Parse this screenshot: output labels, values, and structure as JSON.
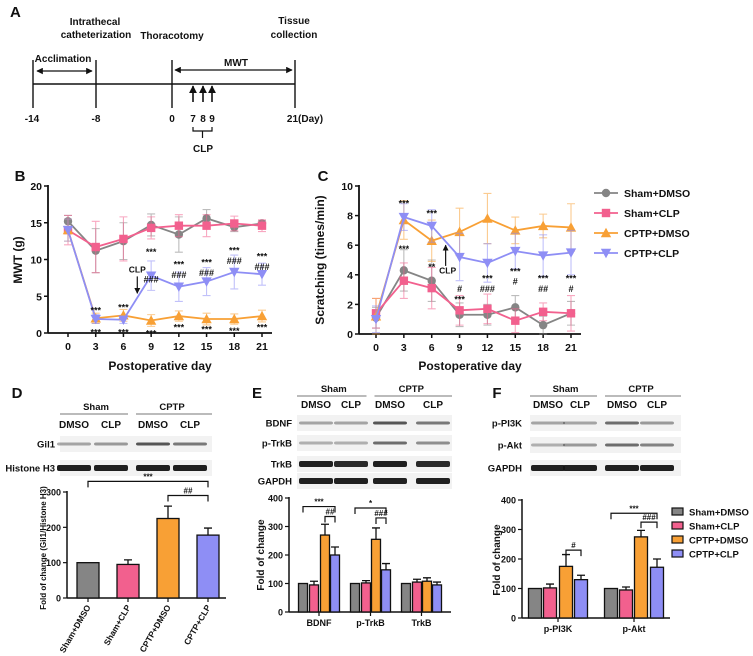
{
  "panel_labels": {
    "A": "A",
    "B": "B",
    "C": "C",
    "D": "D",
    "E": "E",
    "F": "F"
  },
  "timeline": {
    "events": {
      "intrathecal_1": "Intrathecal",
      "intrathecal_2": "catheterization",
      "thoracotomy": "Thoracotomy",
      "tissue_1": "Tissue",
      "tissue_2": "collection"
    },
    "acclimation": "Acclimation",
    "mwt": "MWT",
    "ticks": [
      "-14",
      "-8",
      "0",
      "7",
      "8",
      "9",
      "21(Day)"
    ],
    "clp": "CLP"
  },
  "colors": {
    "Sham+DMSO": "#858585",
    "Sham+CLP": "#f2608e",
    "CPTP+DMSO": "#f8a035",
    "CPTP+CLP": "#8e8ef5"
  },
  "legend": [
    "Sham+DMSO",
    "Sham+CLP",
    "CPTP+DMSO",
    "CPTP+CLP"
  ],
  "blots": {
    "D": {
      "groups": [
        "Sham",
        "CPTP"
      ],
      "lanes": [
        "DMSO",
        "CLP",
        "DMSO",
        "CLP"
      ],
      "rows": [
        "Gil1",
        "Histone H3"
      ],
      "intensity": [
        [
          0.35,
          0.4,
          0.7,
          0.55
        ],
        [
          0.95,
          0.95,
          0.95,
          0.95
        ]
      ]
    },
    "E": {
      "groups": [
        "Sham",
        "CPTP"
      ],
      "lanes": [
        "DMSO",
        "CLP",
        "DMSO",
        "CLP"
      ],
      "rows": [
        "BDNF",
        "p-TrkB",
        "TrkB",
        "GAPDH"
      ],
      "intensity": [
        [
          0.35,
          0.35,
          0.7,
          0.55
        ],
        [
          0.3,
          0.3,
          0.6,
          0.45
        ],
        [
          0.95,
          0.9,
          0.95,
          0.9
        ],
        [
          0.95,
          0.95,
          0.95,
          0.95
        ]
      ]
    },
    "F": {
      "groups": [
        "Sham",
        "CPTP"
      ],
      "lanes": [
        "DMSO",
        "CLP",
        "DMSO",
        "CLP"
      ],
      "rows": [
        "p-PI3K",
        "p-Akt",
        "GAPDH"
      ],
      "intensity": [
        [
          0.35,
          0.35,
          0.6,
          0.4
        ],
        [
          0.3,
          0.4,
          0.6,
          0.5
        ],
        [
          0.95,
          0.95,
          0.95,
          0.95
        ]
      ]
    }
  },
  "chart_data": [
    {
      "id": "B",
      "type": "line",
      "title": "",
      "xlabel": "Postoperative day",
      "ylabel": "MWT (g)",
      "x": [
        0,
        3,
        6,
        9,
        12,
        15,
        18,
        21
      ],
      "xticks": [
        "0",
        "3",
        "6",
        "9",
        "12",
        "15",
        "18",
        "21"
      ],
      "ylim": [
        0,
        20
      ],
      "yticks": [
        "0",
        "5",
        "10",
        "15",
        "20"
      ],
      "series": [
        {
          "name": "Sham+DMSO",
          "marker": "circle",
          "values": [
            15.2,
            11.2,
            12.5,
            14.7,
            13.4,
            15.6,
            14.4,
            14.9
          ],
          "errors": [
            0.8,
            3,
            2.5,
            1.5,
            2.4,
            1.2,
            0.6,
            0.4
          ]
        },
        {
          "name": "Sham+CLP",
          "marker": "square",
          "values": [
            14.0,
            11.7,
            12.8,
            14.3,
            14.6,
            14.6,
            14.9,
            14.6
          ],
          "errors": [
            2,
            3.5,
            3,
            1.5,
            1.5,
            1.5,
            1,
            0.8
          ]
        },
        {
          "name": "CPTP+DMSO",
          "marker": "triangle-up",
          "values": [
            14.0,
            2.0,
            2.4,
            1.7,
            2.3,
            1.9,
            1.9,
            2.3
          ],
          "errors": [
            1.5,
            0.7,
            0.8,
            0.8,
            0.7,
            0.8,
            0.7,
            0.8
          ]
        },
        {
          "name": "CPTP+CLP",
          "marker": "triangle-down",
          "values": [
            14.0,
            1.9,
            1.8,
            7.8,
            6.3,
            7.0,
            8.3,
            8.0
          ],
          "errors": [
            1.5,
            0.6,
            0.5,
            2,
            2,
            1.9,
            2.3,
            1.5
          ]
        }
      ],
      "annotations": [
        {
          "x": 3,
          "y": 3.2,
          "text": "***"
        },
        {
          "x": 3,
          "y": 0.2,
          "text": "***"
        },
        {
          "x": 6,
          "y": 3.6,
          "text": "***"
        },
        {
          "x": 6,
          "y": 0.2,
          "text": "***"
        },
        {
          "x": 9,
          "y": 10.6,
          "text": "***"
        },
        {
          "x": 9,
          "y": 9.7,
          "text": "###"
        },
        {
          "x": 9,
          "y": 0.1,
          "text": "***"
        },
        {
          "x": 12,
          "y": 8.9,
          "text": "***"
        },
        {
          "x": 12,
          "y": 8.0,
          "text": "###"
        },
        {
          "x": 12,
          "y": 0.9,
          "text": "***"
        },
        {
          "x": 15,
          "y": 9.2,
          "text": "***"
        },
        {
          "x": 15,
          "y": 8.3,
          "text": "###"
        },
        {
          "x": 15,
          "y": 0.6,
          "text": "***"
        },
        {
          "x": 18,
          "y": 10.8,
          "text": "***"
        },
        {
          "x": 18,
          "y": 9.9,
          "text": "###"
        },
        {
          "x": 18,
          "y": 0.4,
          "text": "***"
        },
        {
          "x": 21,
          "y": 10.0,
          "text": "***"
        },
        {
          "x": 21,
          "y": 9.1,
          "text": "###"
        },
        {
          "x": 21,
          "y": 0.9,
          "text": "***"
        }
      ],
      "clp_marker": {
        "x": 7.5,
        "text": "CLP",
        "direction": "down"
      }
    },
    {
      "id": "C",
      "type": "line",
      "title": "",
      "xlabel": "Postoperative day",
      "ylabel": "Scratching (times/min)",
      "x": [
        0,
        3,
        6,
        9,
        12,
        15,
        18,
        21
      ],
      "xticks": [
        "0",
        "3",
        "6",
        "9",
        "12",
        "15",
        "18",
        "21"
      ],
      "ylim": [
        0,
        10
      ],
      "yticks": [
        "0",
        "2",
        "4",
        "6",
        "8",
        "10"
      ],
      "legend_position": "top-right",
      "series": [
        {
          "name": "Sham+DMSO",
          "marker": "circle",
          "values": [
            1.1,
            4.3,
            3.6,
            1.3,
            1.3,
            1.8,
            0.6,
            1.4
          ],
          "errors": [
            0.7,
            1.4,
            1.4,
            0.8,
            0.7,
            0.8,
            0.6,
            0.8
          ]
        },
        {
          "name": "Sham+CLP",
          "marker": "square",
          "values": [
            1.4,
            3.6,
            3.1,
            1.6,
            1.7,
            0.9,
            1.5,
            1.4
          ],
          "errors": [
            1,
            1.2,
            1.4,
            1,
            1,
            0.8,
            0.6,
            1.2
          ]
        },
        {
          "name": "CPTP+DMSO",
          "marker": "triangle-up",
          "values": [
            1.2,
            7.7,
            6.3,
            6.9,
            7.8,
            7.0,
            7.3,
            7.2
          ],
          "errors": [
            1.2,
            1.3,
            1.4,
            1.6,
            1.7,
            0.9,
            0.8,
            1.6
          ]
        },
        {
          "name": "CPTP+CLP",
          "marker": "triangle-down",
          "values": [
            1.0,
            7.9,
            7.3,
            5.2,
            4.8,
            5.6,
            5.3,
            5.5
          ],
          "errors": [
            0.9,
            0.9,
            1.1,
            1.6,
            1.3,
            1.2,
            1.4,
            1.5
          ]
        }
      ],
      "annotations": [
        {
          "x": 3,
          "y": 8.9,
          "text": "***"
        },
        {
          "x": 3,
          "y": 5.8,
          "text": "***"
        },
        {
          "x": 6,
          "y": 8.2,
          "text": "***"
        },
        {
          "x": 6,
          "y": 4.6,
          "text": "**"
        },
        {
          "x": 9,
          "y": 3.6,
          "text": "***"
        },
        {
          "x": 9,
          "y": 3.1,
          "text": "#"
        },
        {
          "x": 12,
          "y": 3.6,
          "text": "***"
        },
        {
          "x": 12,
          "y": 3.1,
          "text": "###"
        },
        {
          "x": 15,
          "y": 4.1,
          "text": "***"
        },
        {
          "x": 15,
          "y": 3.6,
          "text": "#"
        },
        {
          "x": 18,
          "y": 3.6,
          "text": "***"
        },
        {
          "x": 18,
          "y": 3.1,
          "text": "##"
        },
        {
          "x": 21,
          "y": 3.6,
          "text": "***"
        },
        {
          "x": 21,
          "y": 3.1,
          "text": "#"
        }
      ],
      "clp_marker": {
        "x": 7.5,
        "text": "CLP",
        "direction": "up"
      }
    },
    {
      "id": "D",
      "type": "bar",
      "ylabel": "Fold of change (Gil1/Histone H3)",
      "categories": [
        "Sham+DMSO",
        "Sham+CLP",
        "CPTP+DMSO",
        "CPTP+CLP"
      ],
      "values": [
        100,
        95,
        225,
        178
      ],
      "errors": [
        0,
        13,
        35,
        20
      ],
      "ylim": [
        0,
        300
      ],
      "yticks": [
        "0",
        "100",
        "200",
        "300"
      ],
      "brackets": [
        {
          "from": 0,
          "to": 3,
          "y": 330,
          "text": "***"
        },
        {
          "from": 2,
          "to": 3,
          "y": 290,
          "text": "##"
        }
      ]
    },
    {
      "id": "E",
      "type": "bar",
      "ylabel": "Fold of change",
      "categories": [
        "BDNF",
        "p-TrkB",
        "TrkB"
      ],
      "series": [
        {
          "name": "Sham+DMSO",
          "values": [
            100,
            100,
            100
          ],
          "errors": [
            0,
            0,
            0
          ]
        },
        {
          "name": "Sham+CLP",
          "values": [
            95,
            102,
            105
          ],
          "errors": [
            13,
            8,
            10
          ]
        },
        {
          "name": "CPTP+DMSO",
          "values": [
            270,
            255,
            108
          ],
          "errors": [
            38,
            40,
            12
          ]
        },
        {
          "name": "CPTP+CLP",
          "values": [
            200,
            148,
            95
          ],
          "errors": [
            28,
            22,
            10
          ]
        }
      ],
      "ylim": [
        0,
        400
      ],
      "yticks": [
        "0",
        "100",
        "200",
        "300",
        "400"
      ],
      "brackets": [
        {
          "group": 0,
          "from": 0,
          "to": 3,
          "y": 370,
          "text": "***"
        },
        {
          "group": 0,
          "from": 2,
          "to": 3,
          "y": 335,
          "text": "##"
        },
        {
          "group": 1,
          "from": 0,
          "to": 3,
          "y": 365,
          "text": "*"
        },
        {
          "group": 1,
          "from": 2,
          "to": 3,
          "y": 330,
          "text": "###"
        }
      ]
    },
    {
      "id": "F",
      "type": "bar",
      "ylabel": "Fold of change",
      "legend_position": "right",
      "categories": [
        "p-PI3K",
        "p-Akt"
      ],
      "series": [
        {
          "name": "Sham+DMSO",
          "values": [
            100,
            100
          ],
          "errors": [
            0,
            0
          ]
        },
        {
          "name": "Sham+CLP",
          "values": [
            102,
            95
          ],
          "errors": [
            13,
            10
          ]
        },
        {
          "name": "CPTP+DMSO",
          "values": [
            175,
            275
          ],
          "errors": [
            40,
            22
          ]
        },
        {
          "name": "CPTP+CLP",
          "values": [
            130,
            172
          ],
          "errors": [
            15,
            28
          ]
        }
      ],
      "ylim": [
        0,
        400
      ],
      "yticks": [
        "0",
        "100",
        "200",
        "300",
        "400"
      ],
      "brackets": [
        {
          "group": 0,
          "from": 2,
          "to": 3,
          "y": 230,
          "text": "#"
        },
        {
          "group": 1,
          "from": 0,
          "to": 3,
          "y": 355,
          "text": "***"
        },
        {
          "group": 1,
          "from": 2,
          "to": 3,
          "y": 325,
          "text": "###"
        }
      ]
    }
  ]
}
